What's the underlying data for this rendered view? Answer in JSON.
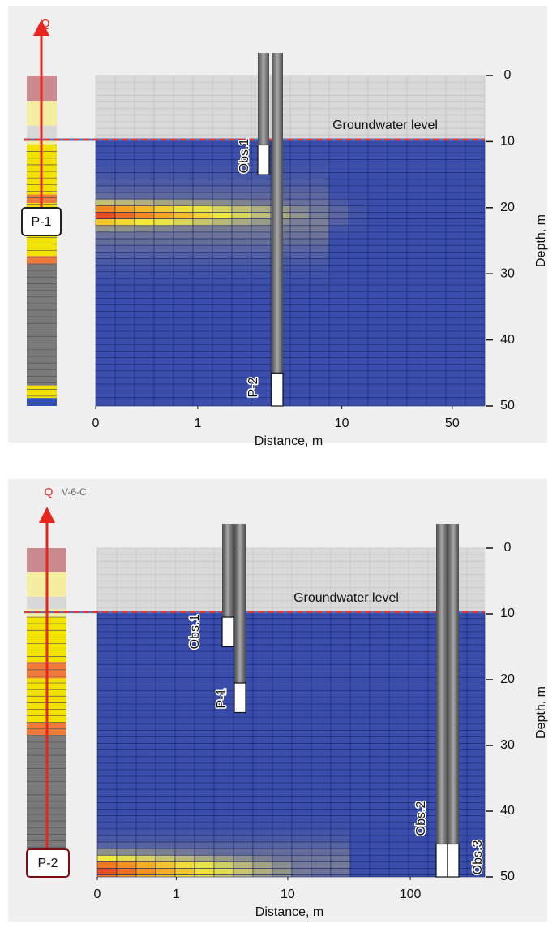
{
  "chart_data": [
    {
      "type": "section",
      "pump_label": "Q",
      "well_box_label": "P-1",
      "groundwater_label": "Groundwater level",
      "groundwater_depth": 9.7,
      "xlabel": "Distance, m",
      "ylabel": "Depth, m",
      "xlim": [
        0,
        80
      ],
      "xticks": [
        0,
        1,
        10,
        50
      ],
      "ylim": [
        0,
        50
      ],
      "yticks": [
        0,
        10,
        20,
        30,
        40,
        50
      ],
      "wells": [
        {
          "label": "Obs.1",
          "screen": [
            10.5,
            15
          ]
        },
        {
          "label": "P-2",
          "screen": [
            45,
            50
          ]
        }
      ]
    },
    {
      "type": "section",
      "pump_label": "Q",
      "pump_note": "V-6-C",
      "well_box_label": "P-2",
      "groundwater_label": "Groundwater level",
      "groundwater_depth": 9.7,
      "xlabel": "Distance, m",
      "ylabel": "Depth, m",
      "xlim": [
        0,
        400
      ],
      "xticks": [
        0,
        1,
        10,
        100
      ],
      "ylim": [
        0,
        50
      ],
      "yticks": [
        0,
        10,
        20,
        30,
        40,
        50
      ],
      "wells": [
        {
          "label": "Obs.1",
          "screen": [
            10.5,
            15
          ]
        },
        {
          "label": "P-1",
          "screen": [
            20.5,
            25
          ]
        },
        {
          "label": "Obs.2",
          "screen": [
            45,
            50
          ]
        },
        {
          "label": "Obs.3",
          "screen": [
            45,
            50
          ]
        }
      ]
    }
  ]
}
